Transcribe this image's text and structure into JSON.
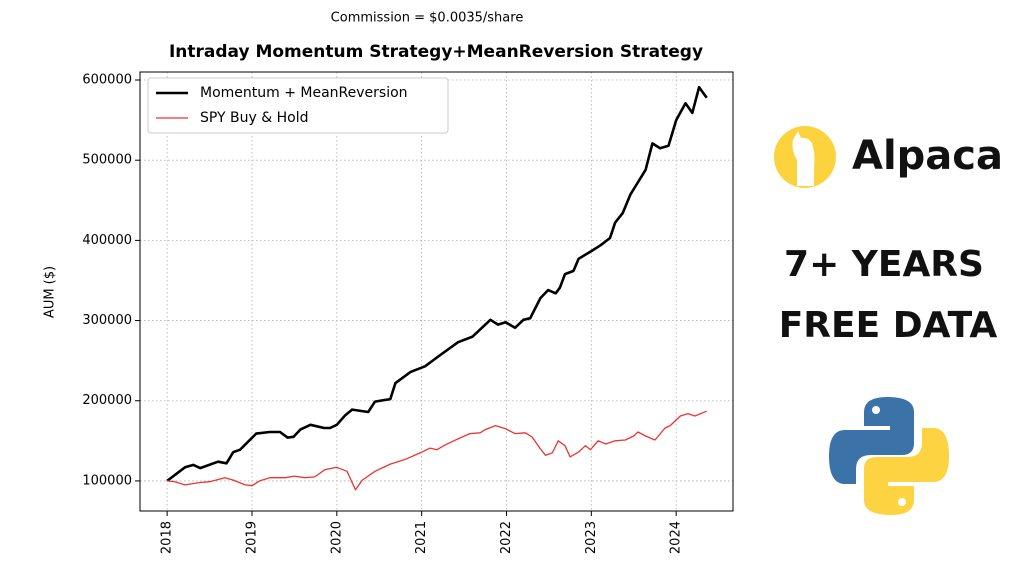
{
  "chart_data": {
    "type": "line",
    "subtitle": "Commission = $0.0035/share",
    "title": "Intraday Momentum Strategy+MeanReversion Strategy",
    "y_label": "AUM ($)",
    "xlim": [
      2017.68,
      2024.67
    ],
    "xticks": [
      2018,
      2019,
      2020,
      2021,
      2022,
      2023,
      2024
    ],
    "ylim": [
      62500,
      610000
    ],
    "yticks": [
      100000,
      200000,
      300000,
      400000,
      500000,
      600000
    ],
    "grid": true,
    "legend": "upper left",
    "series": [
      {
        "name": "Momentum + MeanReversion",
        "color": "#000000",
        "x": [
          2018.0,
          2018.21,
          2018.31,
          2018.39,
          2018.6,
          2018.7,
          2018.78,
          2018.86,
          2019.05,
          2019.21,
          2019.33,
          2019.42,
          2019.49,
          2019.57,
          2019.69,
          2019.85,
          2019.92,
          2020.0,
          2020.1,
          2020.18,
          2020.37,
          2020.45,
          2020.63,
          2020.69,
          2020.87,
          2021.04,
          2021.22,
          2021.43,
          2021.6,
          2021.81,
          2021.9,
          2021.99,
          2022.1,
          2022.2,
          2022.28,
          2022.4,
          2022.49,
          2022.58,
          2022.63,
          2022.69,
          2022.79,
          2022.85,
          2022.99,
          2023.11,
          2023.22,
          2023.28,
          2023.37,
          2023.46,
          2023.64,
          2023.72,
          2023.81,
          2023.91,
          2024.0,
          2024.11,
          2024.19,
          2024.27,
          2024.36
        ],
        "values": [
          100000,
          117000,
          120000,
          116000,
          124000,
          122000,
          136000,
          139000,
          159000,
          161000,
          161000,
          154000,
          155000,
          164000,
          170000,
          166000,
          166000,
          170000,
          182000,
          189000,
          186000,
          199000,
          202000,
          222000,
          236000,
          243000,
          257000,
          273000,
          280000,
          301000,
          295000,
          298000,
          291000,
          301000,
          303000,
          328000,
          338000,
          334000,
          341000,
          358000,
          362000,
          377000,
          386000,
          394000,
          403000,
          422000,
          434000,
          457000,
          488000,
          521000,
          515000,
          518000,
          550000,
          571000,
          559000,
          591000,
          578000
        ]
      },
      {
        "name": "SPY Buy & Hold",
        "color": "#ee3333",
        "x": [
          2018.0,
          2018.09,
          2018.21,
          2018.39,
          2018.5,
          2018.68,
          2018.78,
          2018.92,
          2019.0,
          2019.09,
          2019.21,
          2019.39,
          2019.5,
          2019.62,
          2019.74,
          2019.86,
          2020.0,
          2020.12,
          2020.22,
          2020.3,
          2020.45,
          2020.63,
          2020.81,
          2020.98,
          2021.1,
          2021.18,
          2021.28,
          2021.46,
          2021.57,
          2021.69,
          2021.75,
          2021.87,
          2021.99,
          2022.1,
          2022.22,
          2022.3,
          2022.4,
          2022.46,
          2022.54,
          2022.61,
          2022.69,
          2022.75,
          2022.85,
          2022.93,
          2022.99,
          2023.08,
          2023.17,
          2023.28,
          2023.4,
          2023.5,
          2023.55,
          2023.64,
          2023.75,
          2023.87,
          2023.93,
          2024.05,
          2024.14,
          2024.22,
          2024.36
        ],
        "values": [
          100000,
          99000,
          95000,
          98000,
          99000,
          104000,
          101000,
          95000,
          94000,
          100000,
          104000,
          104000,
          106000,
          104000,
          105000,
          114000,
          117000,
          112000,
          89000,
          101000,
          112000,
          121000,
          127000,
          135000,
          141000,
          139000,
          145000,
          154000,
          159000,
          160000,
          164000,
          169000,
          165000,
          159000,
          160000,
          155000,
          140000,
          132000,
          135000,
          150000,
          144000,
          130000,
          136000,
          144000,
          139000,
          150000,
          146000,
          150000,
          151000,
          156000,
          161000,
          156000,
          151000,
          166000,
          169000,
          181000,
          184000,
          181000,
          187000
        ]
      }
    ]
  },
  "sidebar": {
    "brand": "Alpaca",
    "headline": [
      "7+ YEARS",
      "FREE DATA"
    ]
  }
}
